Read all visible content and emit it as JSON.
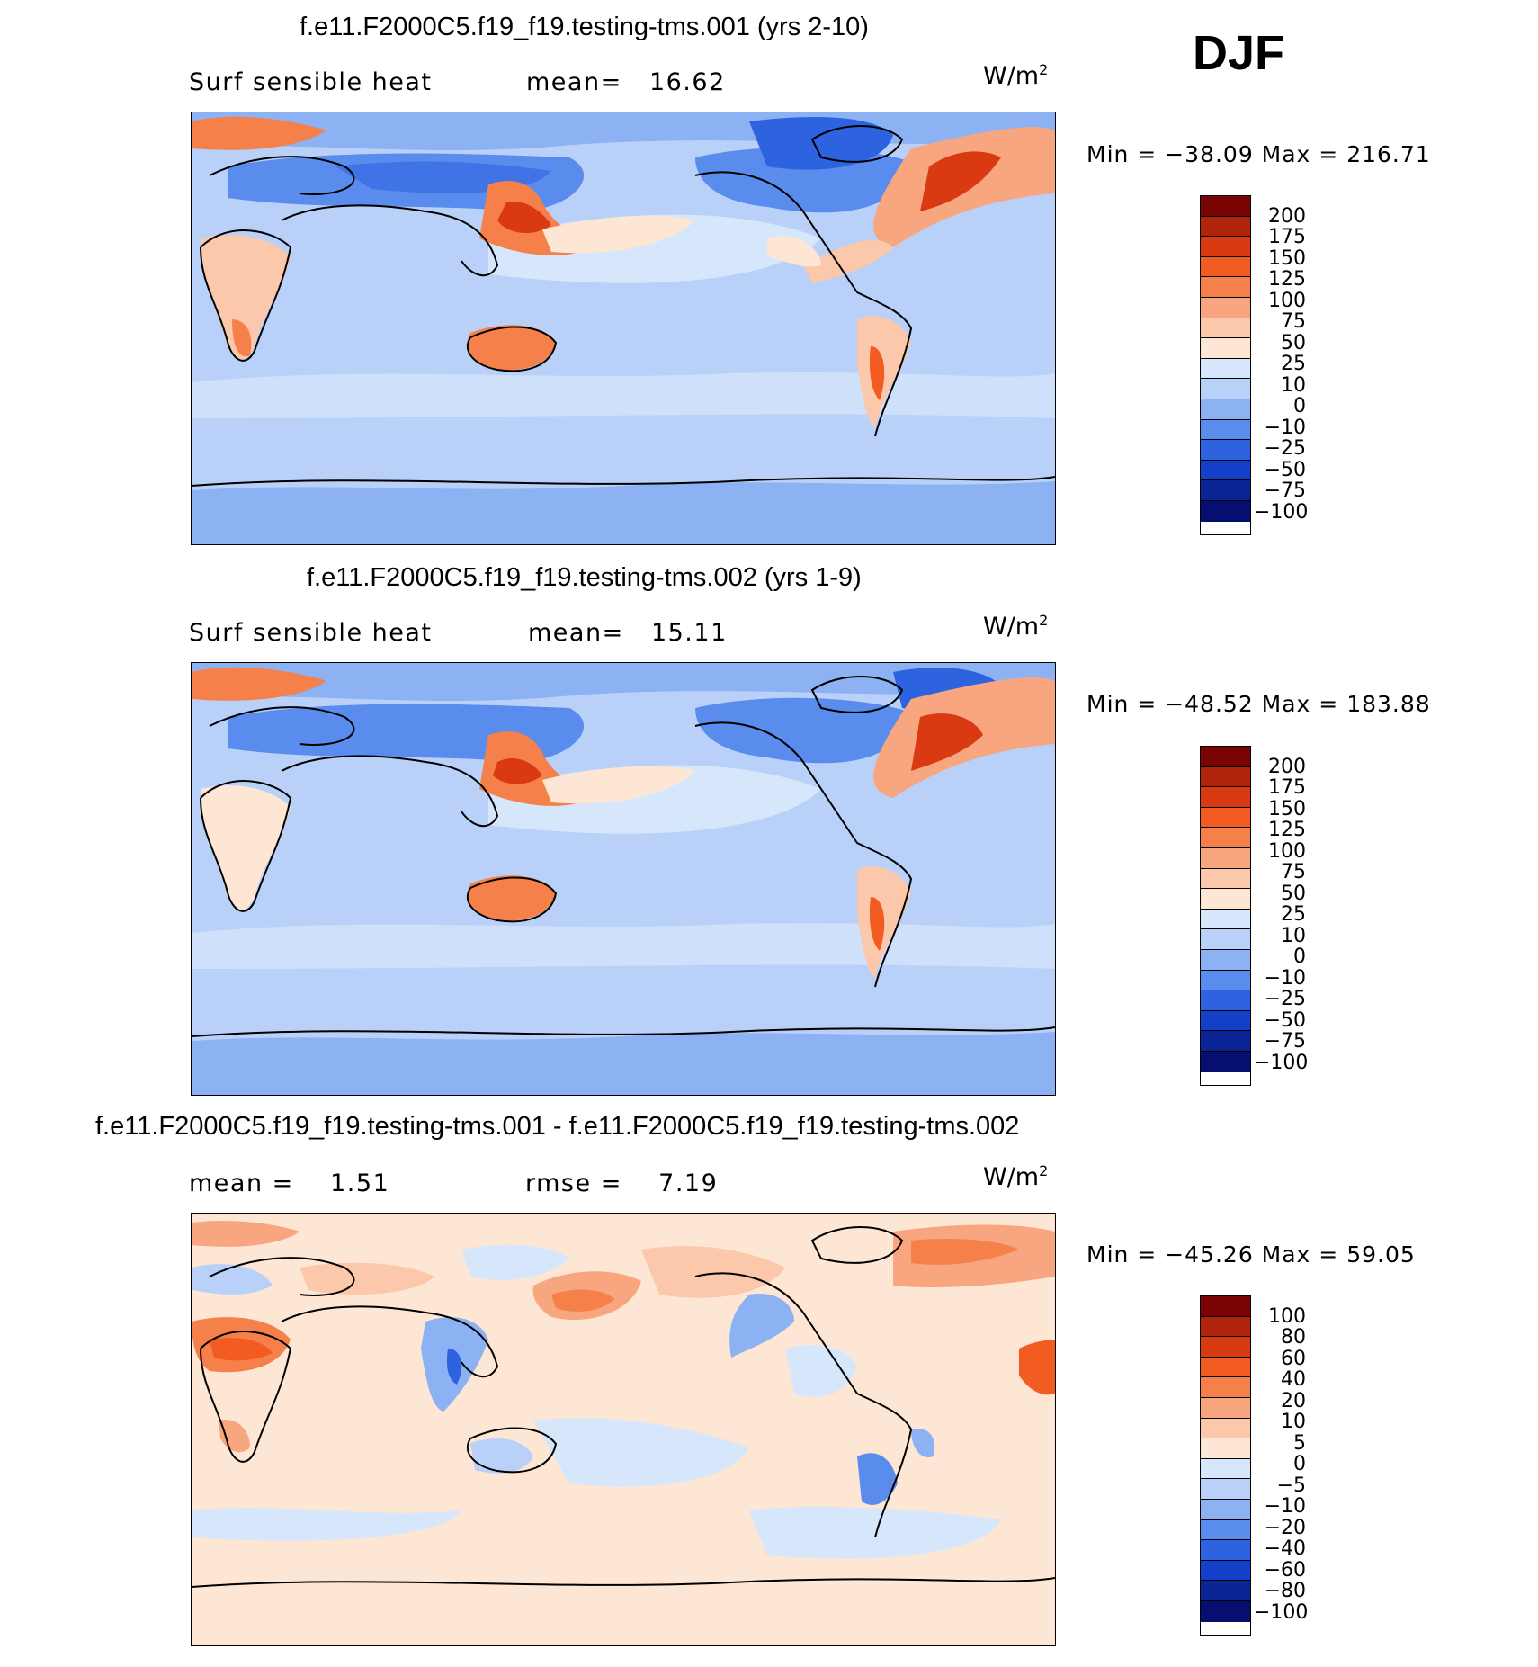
{
  "season": "DJF",
  "panels": [
    {
      "title": "f.e11.F2000C5.f19_f19.testing-tms.001 (yrs 2-10)",
      "left_label": "Surf  sensible  heat",
      "stat_label": "mean=",
      "stat_value": "16.62",
      "units": "W/m",
      "units_sup": "2",
      "minmax": "Min  =  −38.09  Max  =  216.71",
      "colorbar": {
        "labels": [
          "200",
          "175",
          "150",
          "125",
          "100",
          "75",
          "50",
          "25",
          "10",
          "0",
          "−10",
          "−25",
          "−50",
          "−75",
          "−100"
        ],
        "colors": [
          "#7a0403",
          "#b0240c",
          "#d93a12",
          "#f25c22",
          "#f5804a",
          "#f7a67f",
          "#fbc8ac",
          "#fde6d3",
          "#d7e7fb",
          "#b9d1f8",
          "#8cb2f3",
          "#5a8ced",
          "#2e63e0",
          "#1340c8",
          "#0a2496",
          "#050f70"
        ]
      }
    },
    {
      "title": "f.e11.F2000C5.f19_f19.testing-tms.002 (yrs 1-9)",
      "left_label": "Surf  sensible  heat",
      "stat_label": "mean=",
      "stat_value": "15.11",
      "units": "W/m",
      "units_sup": "2",
      "minmax": "Min  =  −48.52  Max  =  183.88",
      "colorbar": {
        "labels": [
          "200",
          "175",
          "150",
          "125",
          "100",
          "75",
          "50",
          "25",
          "10",
          "0",
          "−10",
          "−25",
          "−50",
          "−75",
          "−100"
        ],
        "colors": [
          "#7a0403",
          "#b0240c",
          "#d93a12",
          "#f25c22",
          "#f5804a",
          "#f7a67f",
          "#fbc8ac",
          "#fde6d3",
          "#d7e7fb",
          "#b9d1f8",
          "#8cb2f3",
          "#5a8ced",
          "#2e63e0",
          "#1340c8",
          "#0a2496",
          "#050f70"
        ]
      }
    },
    {
      "title": "f.e11.F2000C5.f19_f19.testing-tms.001 - f.e11.F2000C5.f19_f19.testing-tms.002",
      "left_label": "mean  =",
      "left_value": "1.51",
      "stat_label": "rmse  =",
      "stat_value": "7.19",
      "units": "W/m",
      "units_sup": "2",
      "minmax": "Min  =  −45.26  Max  =    59.05",
      "colorbar": {
        "labels": [
          "100",
          "80",
          "60",
          "40",
          "20",
          "10",
          "5",
          "0",
          "−5",
          "−10",
          "−20",
          "−40",
          "−60",
          "−80",
          "−100"
        ],
        "colors": [
          "#7a0403",
          "#b0240c",
          "#d93a12",
          "#f25c22",
          "#f5804a",
          "#f7a67f",
          "#fbc8ac",
          "#fde6d3",
          "#d7e7fb",
          "#b9d1f8",
          "#8cb2f3",
          "#5a8ced",
          "#2e63e0",
          "#1340c8",
          "#0a2496",
          "#050f70"
        ]
      }
    }
  ]
}
